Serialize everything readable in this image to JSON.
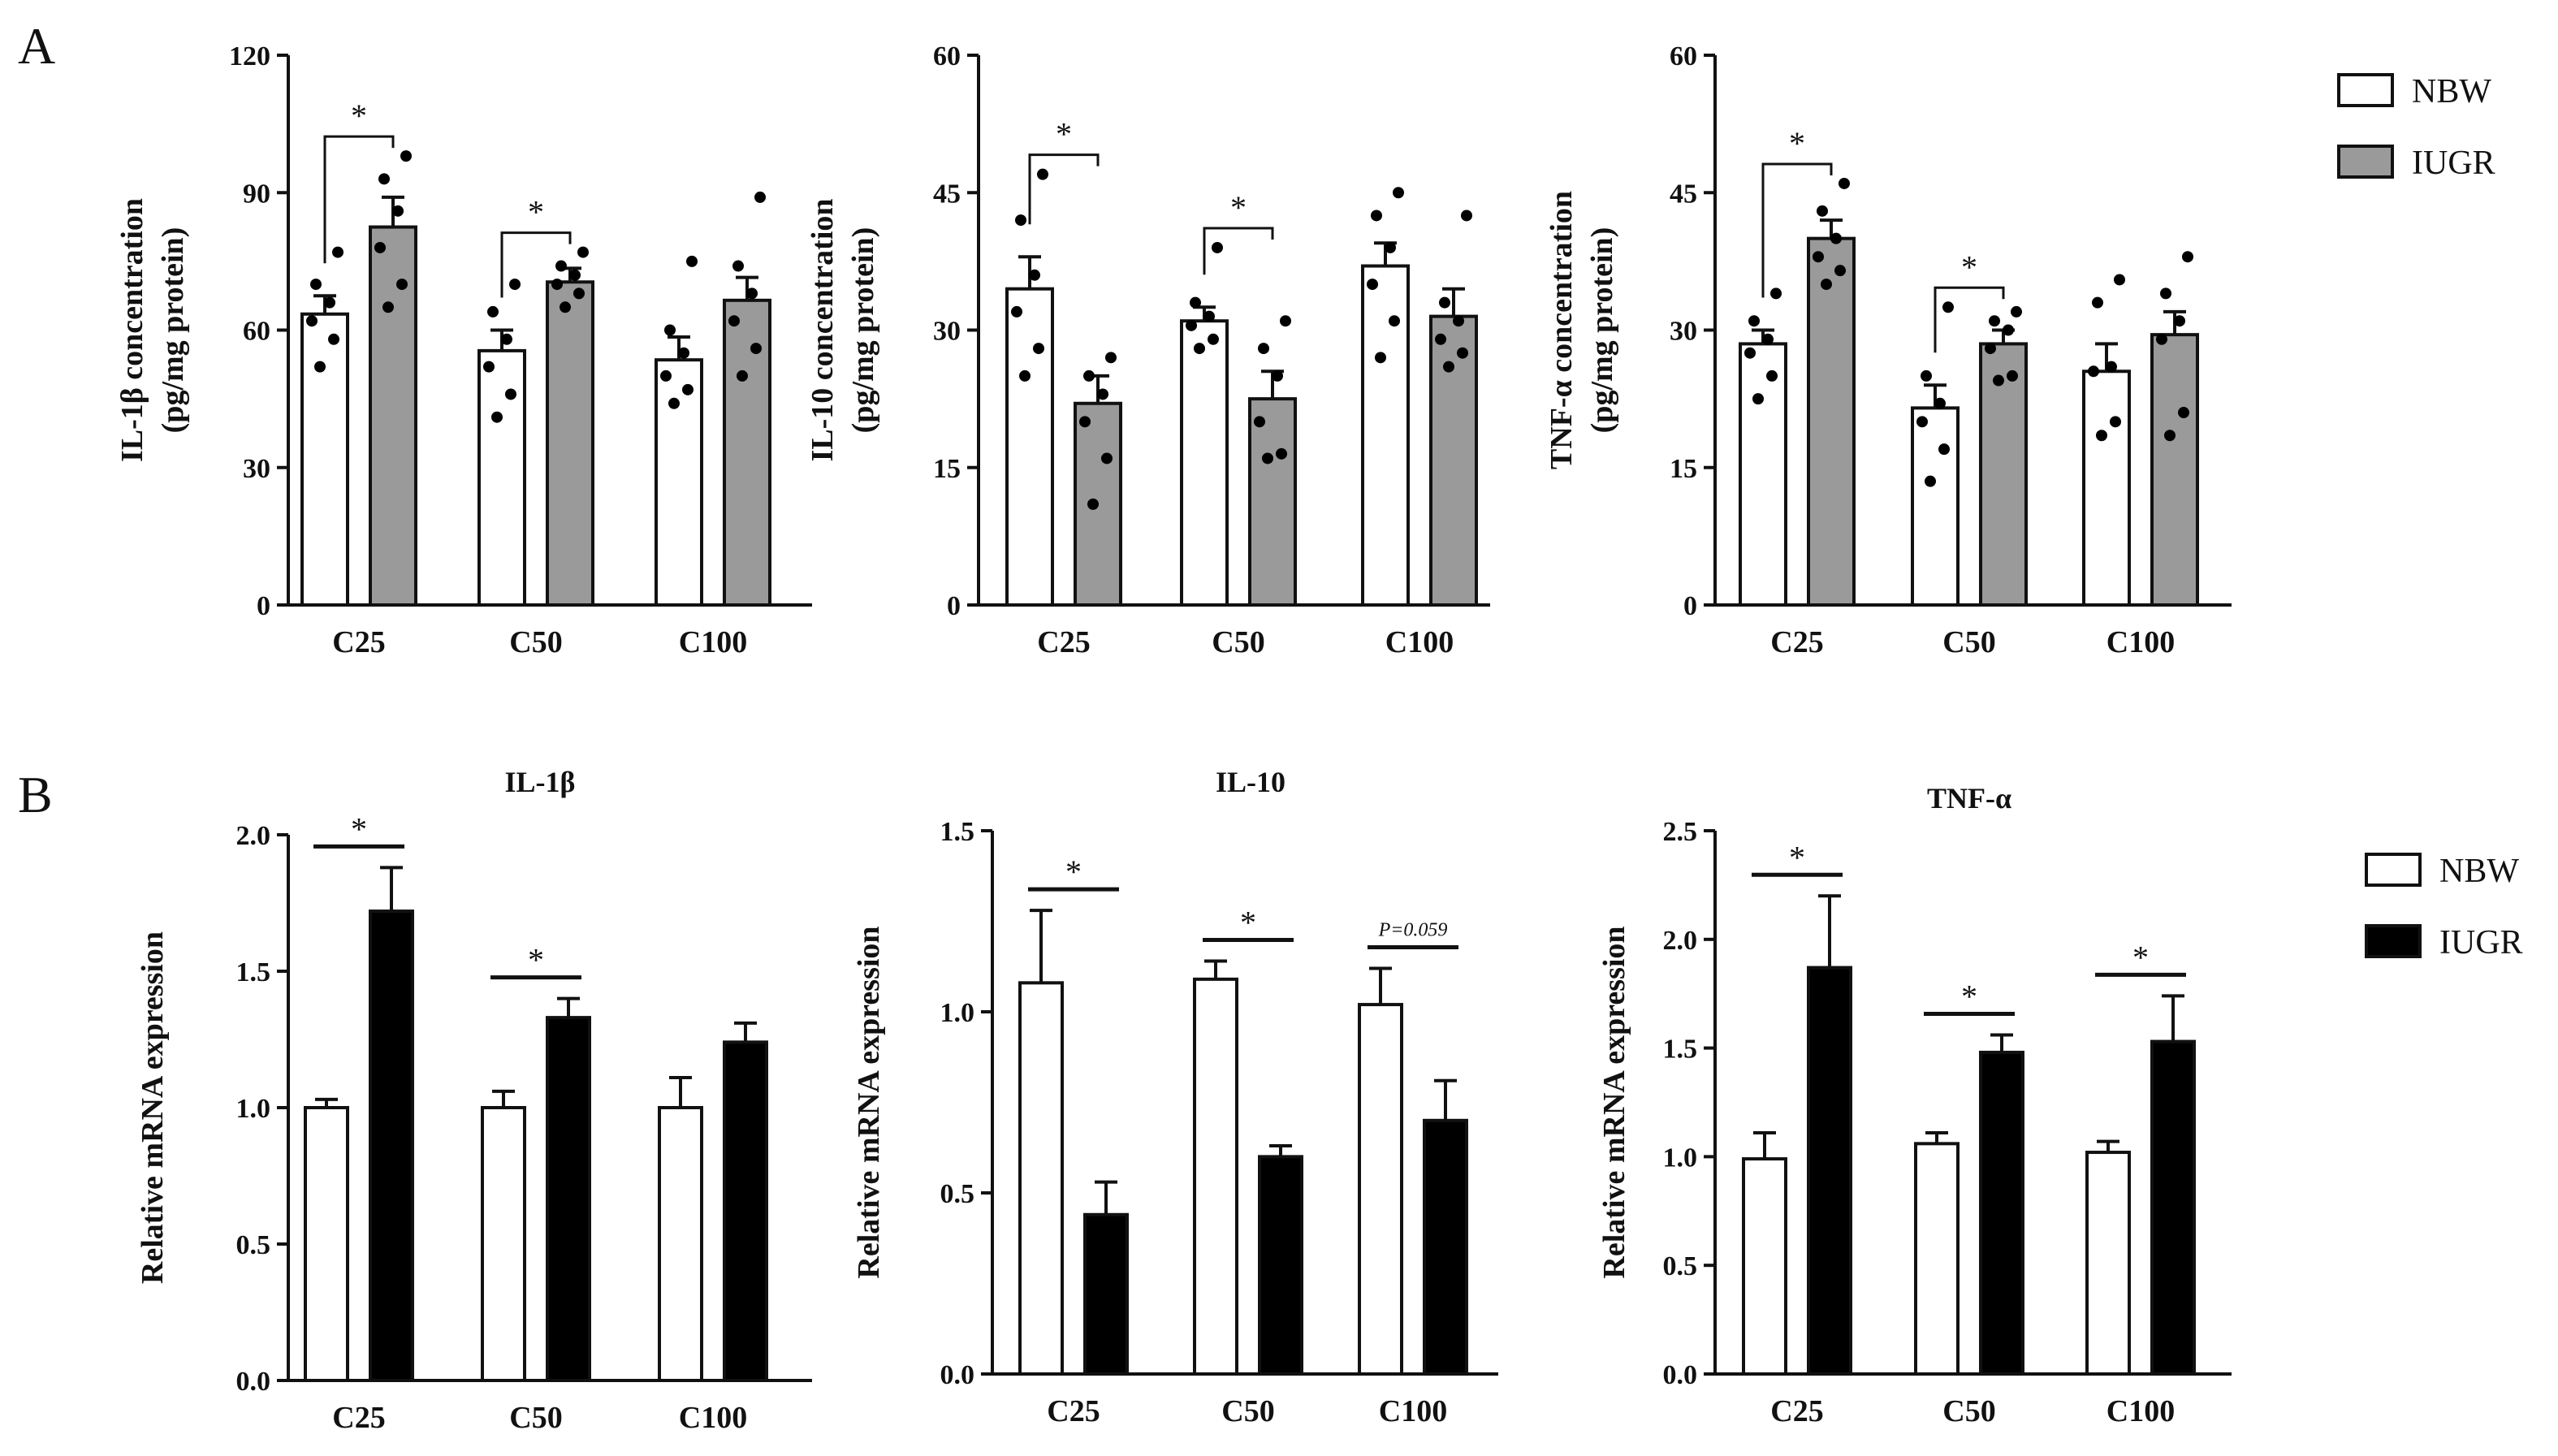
{
  "panel_labels": {
    "a": "A",
    "b": "B"
  },
  "colors": {
    "nbw": "#ffffff",
    "iugr_a": "#9a9a9a",
    "iugr_b": "#000000",
    "axis": "#111111"
  },
  "legend_a": {
    "items": [
      "NBW",
      "IUGR"
    ]
  },
  "legend_b": {
    "items": [
      "NBW",
      "IUGR"
    ]
  },
  "chart_data": [
    {
      "id": "a1",
      "type": "bar",
      "title": "",
      "ylabel_lines": [
        "IL-1β concentration",
        "(pg/mg protein)"
      ],
      "categories": [
        "C25",
        "C50",
        "C100"
      ],
      "ylim": [
        0,
        120
      ],
      "yticks": [
        "0",
        "30",
        "60",
        "90",
        "120"
      ],
      "ytick_values": [
        0,
        30,
        60,
        90,
        120
      ],
      "series": [
        {
          "name": "NBW",
          "values": [
            63.5,
            55.5,
            53.5
          ],
          "err": [
            4.0,
            4.5,
            5.0
          ],
          "points": [
            [
              52,
              58,
              62,
              66,
              70,
              77
            ],
            [
              41,
              46,
              52,
              58,
              64,
              70
            ],
            [
              44,
              47,
              50,
              55,
              60,
              75
            ]
          ]
        },
        {
          "name": "IUGR",
          "values": [
            82.5,
            70.5,
            66.5
          ],
          "err": [
            6.5,
            3.0,
            5.0
          ],
          "points": [
            [
              65,
              70,
              78,
              86,
              93,
              98
            ],
            [
              65,
              68,
              70,
              72,
              74,
              77
            ],
            [
              50,
              56,
              62,
              68,
              74,
              89
            ]
          ]
        }
      ],
      "significance": [
        {
          "group": 0,
          "label": "*",
          "style": "bracket"
        },
        {
          "group": 1,
          "label": "*",
          "style": "bracket"
        }
      ]
    },
    {
      "id": "a2",
      "type": "bar",
      "title": "",
      "ylabel_lines": [
        "IL-10 concentration",
        "(pg/mg protein)"
      ],
      "categories": [
        "C25",
        "C50",
        "C100"
      ],
      "ylim": [
        0,
        60
      ],
      "yticks": [
        "0",
        "15",
        "30",
        "45",
        "60"
      ],
      "ytick_values": [
        0,
        15,
        30,
        45,
        60
      ],
      "series": [
        {
          "name": "NBW",
          "values": [
            34.5,
            31.0,
            37.0
          ],
          "err": [
            3.5,
            1.5,
            2.5
          ],
          "points": [
            [
              25,
              28,
              32,
              36,
              42,
              47
            ],
            [
              28,
              29,
              30.5,
              31.5,
              33,
              39
            ],
            [
              27,
              31,
              35,
              39,
              42.5,
              45
            ]
          ]
        },
        {
          "name": "IUGR",
          "values": [
            22.0,
            22.5,
            31.5
          ],
          "err": [
            3.0,
            3.0,
            3.0
          ],
          "points": [
            [
              11,
              16,
              20,
              23,
              25,
              27
            ],
            [
              16,
              16.5,
              20,
              25,
              28,
              31
            ],
            [
              26,
              27.5,
              29,
              31,
              33,
              42.5
            ]
          ]
        }
      ],
      "significance": [
        {
          "group": 0,
          "label": "*",
          "style": "bracket"
        },
        {
          "group": 1,
          "label": "*",
          "style": "bracket"
        }
      ]
    },
    {
      "id": "a3",
      "type": "bar",
      "title": "",
      "ylabel_lines": [
        "TNF-α concentration",
        "(pg/mg protein)"
      ],
      "categories": [
        "C25",
        "C50",
        "C100"
      ],
      "ylim": [
        0,
        60
      ],
      "yticks": [
        "0",
        "15",
        "30",
        "45",
        "60"
      ],
      "ytick_values": [
        0,
        15,
        30,
        45,
        60
      ],
      "series": [
        {
          "name": "NBW",
          "values": [
            28.5,
            21.5,
            25.5
          ],
          "err": [
            1.5,
            2.5,
            3.0
          ],
          "points": [
            [
              22.5,
              25,
              27.5,
              29,
              31,
              34
            ],
            [
              13.5,
              17,
              20,
              22,
              25,
              32.5
            ],
            [
              18.5,
              20,
              25.5,
              26,
              33,
              35.5
            ]
          ]
        },
        {
          "name": "IUGR",
          "values": [
            40.0,
            28.5,
            29.5
          ],
          "err": [
            2.0,
            1.5,
            2.5
          ],
          "points": [
            [
              35,
              36.5,
              38,
              40,
              43,
              46
            ],
            [
              24.5,
              25,
              28,
              30,
              31,
              32
            ],
            [
              18.5,
              21,
              29,
              31,
              34,
              38
            ]
          ]
        }
      ],
      "significance": [
        {
          "group": 0,
          "label": "*",
          "style": "bracket"
        },
        {
          "group": 1,
          "label": "*",
          "style": "bracket"
        }
      ]
    },
    {
      "id": "b1",
      "type": "bar",
      "title": "IL-1β",
      "ylabel_lines": [
        "Relative mRNA expression"
      ],
      "categories": [
        "C25",
        "C50",
        "C100"
      ],
      "ylim": [
        0,
        2.0
      ],
      "yticks": [
        "0.0",
        "0.5",
        "1.0",
        "1.5",
        "2.0"
      ],
      "ytick_values": [
        0,
        0.5,
        1.0,
        1.5,
        2.0
      ],
      "series": [
        {
          "name": "NBW",
          "values": [
            1.0,
            1.0,
            1.0
          ],
          "err": [
            0.03,
            0.06,
            0.11
          ]
        },
        {
          "name": "IUGR",
          "values": [
            1.72,
            1.33,
            1.24
          ],
          "err": [
            0.16,
            0.07,
            0.07
          ]
        }
      ],
      "significance": [
        {
          "group": 0,
          "label": "*",
          "style": "line"
        },
        {
          "group": 1,
          "label": "*",
          "style": "line"
        }
      ]
    },
    {
      "id": "b2",
      "type": "bar",
      "title": "IL-10",
      "ylabel_lines": [
        "Relative mRNA expression"
      ],
      "categories": [
        "C25",
        "C50",
        "C100"
      ],
      "ylim": [
        0,
        1.5
      ],
      "yticks": [
        "0.0",
        "0.5",
        "1.0",
        "1.5"
      ],
      "ytick_values": [
        0,
        0.5,
        1.0,
        1.5
      ],
      "series": [
        {
          "name": "NBW",
          "values": [
            1.08,
            1.09,
            1.02
          ],
          "err": [
            0.2,
            0.05,
            0.1
          ]
        },
        {
          "name": "IUGR",
          "values": [
            0.44,
            0.6,
            0.7
          ],
          "err": [
            0.09,
            0.03,
            0.11
          ]
        }
      ],
      "significance": [
        {
          "group": 0,
          "label": "*",
          "style": "line"
        },
        {
          "group": 1,
          "label": "*",
          "style": "line"
        },
        {
          "group": 2,
          "label": "P=0.059",
          "style": "line-note"
        }
      ]
    },
    {
      "id": "b3",
      "type": "bar",
      "title": "TNF-α",
      "ylabel_lines": [
        "Relative mRNA expression"
      ],
      "categories": [
        "C25",
        "C50",
        "C100"
      ],
      "ylim": [
        0,
        2.5
      ],
      "yticks": [
        "0.0",
        "0.5",
        "1.0",
        "1.5",
        "2.0",
        "2.5"
      ],
      "ytick_values": [
        0,
        0.5,
        1.0,
        1.5,
        2.0,
        2.5
      ],
      "series": [
        {
          "name": "NBW",
          "values": [
            0.99,
            1.06,
            1.02
          ],
          "err": [
            0.12,
            0.05,
            0.05
          ]
        },
        {
          "name": "IUGR",
          "values": [
            1.87,
            1.48,
            1.53
          ],
          "err": [
            0.33,
            0.08,
            0.21
          ]
        }
      ],
      "significance": [
        {
          "group": 0,
          "label": "*",
          "style": "line"
        },
        {
          "group": 1,
          "label": "*",
          "style": "line"
        },
        {
          "group": 2,
          "label": "*",
          "style": "line"
        }
      ]
    }
  ]
}
